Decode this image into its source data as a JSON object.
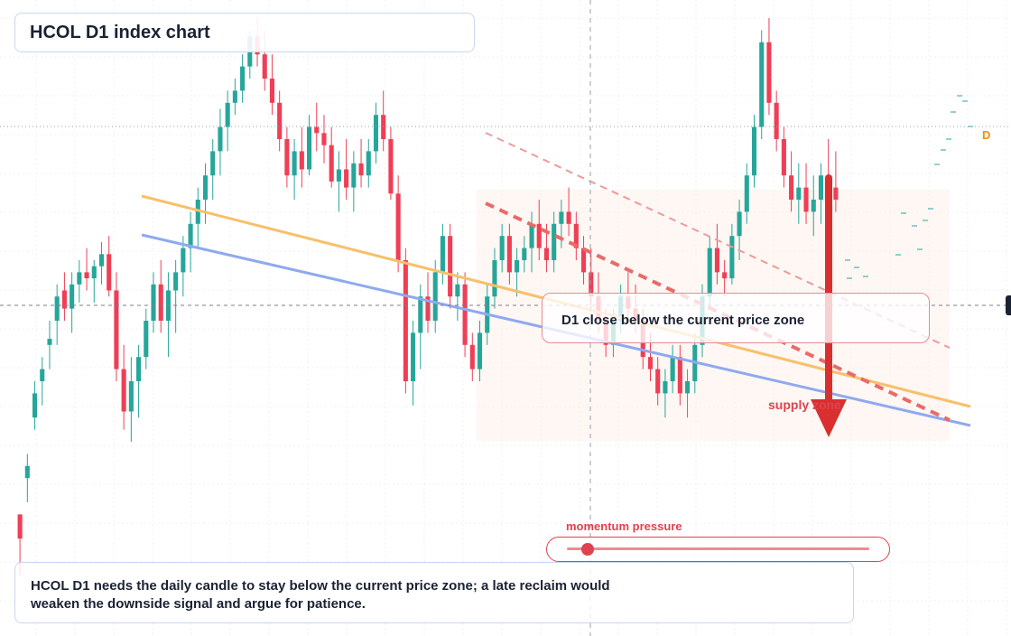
{
  "title": "HCOL D1 index chart",
  "zone_label": "D1 close below the current price zone",
  "supply_label": "supply zone",
  "momentum_label": "momentum pressure",
  "momentum_level": 0.07,
  "timeframe_badge": "D",
  "note": "HCOL D1 needs the daily candle to stay below the current price zone; a late reclaim would weaken the downside signal and argue for patience.",
  "colors": {
    "up": "#26a69a",
    "down": "#ef3e55",
    "support_line": "#8fa9ef",
    "resistance_line": "#f7c06a",
    "channel_dashed": "#e96a6a",
    "arrow": "#d92f2f",
    "zone_fill": "#fdf1ea"
  },
  "chart_data": {
    "type": "candlestick",
    "title": "HCOL D1 index chart",
    "xlabel": "",
    "ylabel": "",
    "ylim": [
      0,
      100
    ],
    "grid": true,
    "candles": [
      [
        18,
        18,
        8,
        14
      ],
      [
        24,
        28,
        20,
        26
      ],
      [
        34,
        40,
        32,
        38
      ],
      [
        40,
        44,
        36,
        42
      ],
      [
        46,
        50,
        42,
        47
      ],
      [
        50,
        56,
        46,
        54
      ],
      [
        55,
        58,
        50,
        52
      ],
      [
        52,
        58,
        48,
        56
      ],
      [
        56,
        60,
        53,
        58
      ],
      [
        58,
        62,
        55,
        57
      ],
      [
        57,
        60,
        53,
        59
      ],
      [
        59,
        63,
        56,
        61
      ],
      [
        61,
        64,
        54,
        55
      ],
      [
        55,
        58,
        40,
        42
      ],
      [
        42,
        46,
        32,
        35
      ],
      [
        35,
        44,
        30,
        40
      ],
      [
        40,
        46,
        34,
        44
      ],
      [
        44,
        52,
        42,
        50
      ],
      [
        50,
        58,
        48,
        56
      ],
      [
        56,
        60,
        48,
        50
      ],
      [
        50,
        58,
        44,
        55
      ],
      [
        55,
        60,
        48,
        58
      ],
      [
        58,
        64,
        54,
        62
      ],
      [
        62,
        68,
        58,
        66
      ],
      [
        66,
        72,
        62,
        70
      ],
      [
        70,
        76,
        66,
        74
      ],
      [
        74,
        80,
        70,
        78
      ],
      [
        78,
        85,
        74,
        82
      ],
      [
        82,
        88,
        78,
        86
      ],
      [
        86,
        90,
        84,
        88
      ],
      [
        88,
        94,
        86,
        92
      ],
      [
        92,
        98,
        90,
        97
      ],
      [
        97,
        100,
        92,
        94
      ],
      [
        94,
        98,
        88,
        90
      ],
      [
        90,
        94,
        84,
        86
      ],
      [
        86,
        88,
        78,
        80
      ],
      [
        80,
        82,
        72,
        74
      ],
      [
        74,
        80,
        70,
        78
      ],
      [
        78,
        82,
        72,
        75
      ],
      [
        75,
        84,
        74,
        82
      ],
      [
        82,
        86,
        78,
        81
      ],
      [
        81,
        84,
        76,
        79
      ],
      [
        79,
        82,
        72,
        73
      ],
      [
        73,
        78,
        68,
        75
      ],
      [
        75,
        80,
        70,
        72
      ],
      [
        72,
        78,
        68,
        76
      ],
      [
        76,
        80,
        72,
        74
      ],
      [
        74,
        80,
        72,
        78
      ],
      [
        78,
        86,
        76,
        84
      ],
      [
        84,
        88,
        78,
        80
      ],
      [
        80,
        82,
        70,
        71
      ],
      [
        71,
        74,
        58,
        60
      ],
      [
        60,
        62,
        38,
        40
      ],
      [
        40,
        50,
        36,
        48
      ],
      [
        48,
        56,
        42,
        54
      ],
      [
        54,
        58,
        48,
        50
      ],
      [
        50,
        60,
        48,
        58
      ],
      [
        58,
        66,
        56,
        64
      ],
      [
        64,
        66,
        52,
        54
      ],
      [
        54,
        58,
        50,
        56
      ],
      [
        56,
        58,
        44,
        46
      ],
      [
        46,
        48,
        40,
        42
      ],
      [
        42,
        50,
        40,
        48
      ],
      [
        48,
        56,
        46,
        54
      ],
      [
        54,
        62,
        52,
        60
      ],
      [
        60,
        66,
        58,
        64
      ],
      [
        64,
        66,
        56,
        58
      ],
      [
        58,
        62,
        54,
        60
      ],
      [
        60,
        64,
        58,
        62
      ],
      [
        62,
        68,
        58,
        66
      ],
      [
        66,
        70,
        60,
        62
      ],
      [
        62,
        66,
        58,
        60
      ],
      [
        60,
        68,
        58,
        66
      ],
      [
        66,
        70,
        62,
        68
      ],
      [
        68,
        72,
        64,
        66
      ],
      [
        66,
        68,
        60,
        62
      ],
      [
        62,
        64,
        56,
        58
      ],
      [
        58,
        62,
        52,
        54
      ],
      [
        54,
        58,
        48,
        50
      ],
      [
        50,
        52,
        44,
        46
      ],
      [
        46,
        52,
        44,
        50
      ],
      [
        50,
        56,
        48,
        54
      ],
      [
        54,
        58,
        50,
        52
      ],
      [
        52,
        56,
        48,
        50
      ],
      [
        50,
        52,
        42,
        44
      ],
      [
        44,
        48,
        40,
        42
      ],
      [
        42,
        44,
        36,
        38
      ],
      [
        38,
        42,
        34,
        40
      ],
      [
        40,
        46,
        38,
        44
      ],
      [
        44,
        46,
        36,
        38
      ],
      [
        38,
        42,
        34,
        40
      ],
      [
        40,
        48,
        38,
        46
      ],
      [
        46,
        56,
        44,
        54
      ],
      [
        54,
        64,
        52,
        62
      ],
      [
        62,
        66,
        56,
        58
      ],
      [
        58,
        60,
        54,
        57
      ],
      [
        57,
        66,
        56,
        64
      ],
      [
        64,
        70,
        60,
        68
      ],
      [
        68,
        76,
        66,
        74
      ],
      [
        74,
        84,
        72,
        82
      ],
      [
        82,
        98,
        80,
        96
      ],
      [
        96,
        100,
        84,
        86
      ],
      [
        86,
        88,
        78,
        80
      ],
      [
        80,
        82,
        72,
        74
      ],
      [
        74,
        78,
        68,
        70
      ],
      [
        70,
        76,
        66,
        72
      ],
      [
        72,
        76,
        66,
        68
      ],
      [
        68,
        74,
        64,
        70
      ],
      [
        70,
        76,
        66,
        74
      ],
      [
        74,
        80,
        70,
        72
      ],
      [
        72,
        78,
        68,
        70
      ]
    ]
  }
}
